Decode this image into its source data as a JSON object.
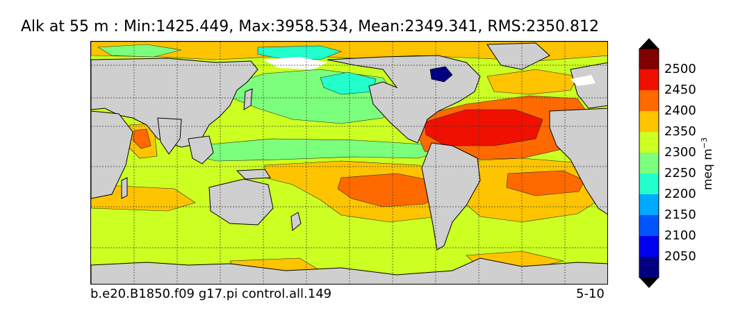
{
  "title": "Alk at 55 m : Min:1425.449, Max:3958.534, Mean:2349.341, RMS:2350.812",
  "caption_left": "b.e20.B1850.f09 g17.pi control.all.149",
  "caption_right": "5-10",
  "colorbar": {
    "label_main": "meq m",
    "label_exp": "−3",
    "levels": [
      {
        "value": "2500",
        "color": "#800000"
      },
      {
        "value": "2450",
        "color": "#f01000"
      },
      {
        "value": "2400",
        "color": "#ff6a00"
      },
      {
        "value": "2350",
        "color": "#ffc400"
      },
      {
        "value": "2300",
        "color": "#ccff22"
      },
      {
        "value": "2250",
        "color": "#7cff7c"
      },
      {
        "value": "2200",
        "color": "#22ffcc"
      },
      {
        "value": "2150",
        "color": "#00aaff"
      },
      {
        "value": "2100",
        "color": "#0055ff"
      },
      {
        "value": "2050",
        "color": "#0000ee"
      },
      {
        "value": "",
        "color": "#000080"
      }
    ],
    "over_color": "#000000",
    "under_color": "#000000"
  },
  "colors": {
    "land": "#cfcfcf",
    "sea_ice": "#ffffff",
    "grid": "#333333"
  }
}
